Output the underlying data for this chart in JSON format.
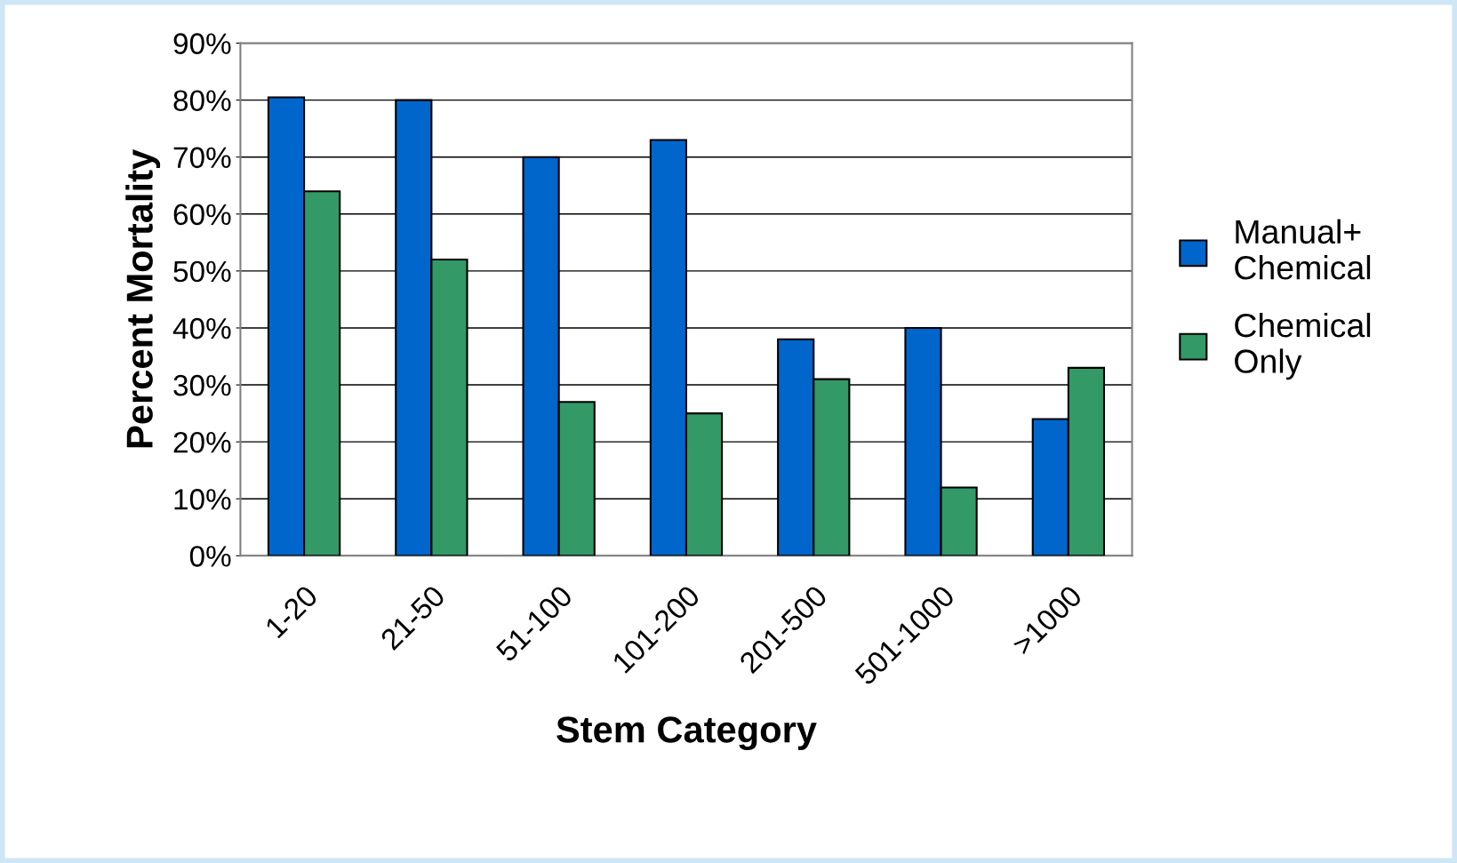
{
  "chart_data": {
    "type": "bar",
    "xlabel": "Stem Category",
    "ylabel": "Percent Mortality",
    "categories": [
      "1-20",
      "21-50",
      "51-100",
      "101-200",
      "201-500",
      "501-1000",
      ">1000"
    ],
    "series": [
      {
        "name": "Manual+\nChemical",
        "color": "#0066cc",
        "values": [
          80.5,
          80,
          70,
          73,
          38,
          40,
          24
        ]
      },
      {
        "name": "Chemical\nOnly",
        "color": "#339966",
        "values": [
          64,
          52,
          27,
          25,
          31,
          12,
          33
        ]
      }
    ],
    "ylim": [
      0,
      90
    ],
    "yticks": [
      {
        "value": 0,
        "label": "0%"
      },
      {
        "value": 10,
        "label": "10%"
      },
      {
        "value": 20,
        "label": "20%"
      },
      {
        "value": 30,
        "label": "30%"
      },
      {
        "value": 40,
        "label": "40%"
      },
      {
        "value": 50,
        "label": "50%"
      },
      {
        "value": 60,
        "label": "60%"
      },
      {
        "value": 70,
        "label": "70%"
      },
      {
        "value": 80,
        "label": "80%"
      },
      {
        "value": 90,
        "label": "90%"
      }
    ],
    "grid": "y",
    "legend": "right"
  }
}
